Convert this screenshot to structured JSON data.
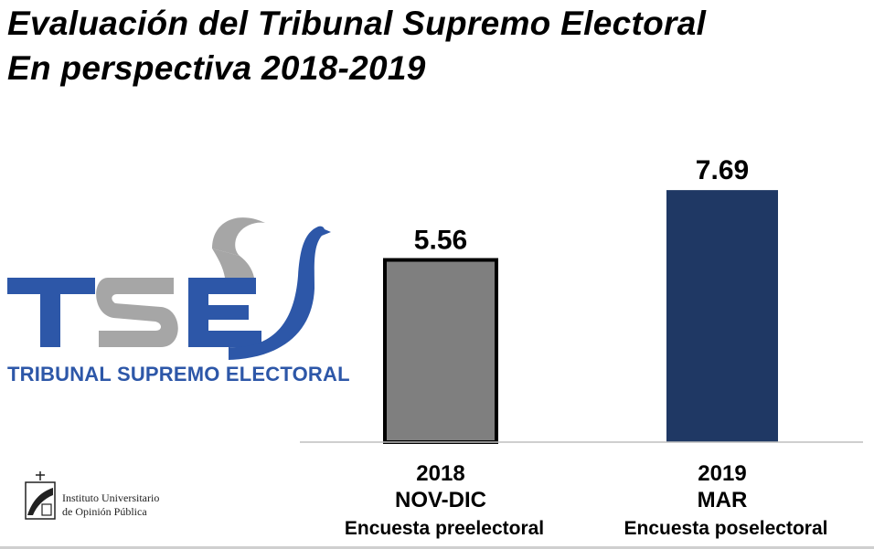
{
  "title": {
    "line1": "Evaluación del Tribunal Supremo Electoral",
    "line2": "En perspectiva 2018-2019"
  },
  "logo": {
    "mark": "TSE",
    "caption": "TRIBUNAL SUPREMO ELECTORAL",
    "icon": "dove-icon",
    "color_blue": "#2d57a8",
    "color_gray": "#a6a6a6"
  },
  "institution": {
    "line1": "Instituto Universitario",
    "line2": "de Opinión Pública",
    "emblem": "iudop-emblem-icon"
  },
  "chart_data": {
    "type": "bar",
    "categories": [
      {
        "year": "2018",
        "period": "NOV-DIC",
        "survey": "Encuesta preelectoral"
      },
      {
        "year": "2019",
        "period": "MAR",
        "survey": "Encuesta poselectoral"
      }
    ],
    "values": [
      5.56,
      7.69
    ],
    "value_labels": [
      "5.56",
      "7.69"
    ],
    "colors": [
      "#7f7f7f",
      "#1f3864"
    ],
    "ylim": [
      0,
      9.7
    ],
    "grid": false,
    "legend": "none"
  }
}
